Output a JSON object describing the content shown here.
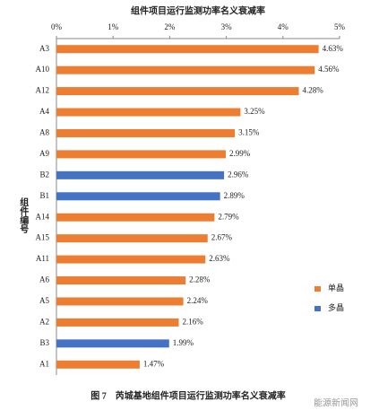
{
  "chart_data": {
    "type": "hbar",
    "title": "组件项目运行监测功率名义衰减率",
    "y_label": "组件编号",
    "caption": "图 7　芮城基地组件项目运行监测功率名义衰减率",
    "watermark": "能源新闻网",
    "categories": [
      "A3",
      "A10",
      "A12",
      "A4",
      "A8",
      "A9",
      "B2",
      "B1",
      "A14",
      "A15",
      "A11",
      "A6",
      "A5",
      "A2",
      "B3",
      "A1"
    ],
    "series": [
      {
        "name": "单晶",
        "color": "#ed7d31",
        "values": [
          4.63,
          4.56,
          4.28,
          3.25,
          3.15,
          2.99,
          null,
          null,
          2.79,
          2.67,
          2.63,
          2.28,
          2.24,
          2.16,
          null,
          1.47
        ],
        "value_labels": [
          "4.63%",
          "4.56%",
          "4.28%",
          "3.25%",
          "3.15%",
          "2.99%",
          null,
          null,
          "2.79%",
          "2.67%",
          "2.63%",
          "2.28%",
          "2.24%",
          "2.16%",
          null,
          "1.47%"
        ]
      },
      {
        "name": "多晶",
        "color": "#4472c4",
        "values": [
          null,
          null,
          null,
          null,
          null,
          null,
          2.96,
          2.89,
          null,
          null,
          null,
          null,
          null,
          null,
          1.99,
          null
        ],
        "value_labels": [
          null,
          null,
          null,
          null,
          null,
          null,
          "2.96%",
          "2.89%",
          null,
          null,
          null,
          null,
          null,
          null,
          "1.99%",
          null
        ]
      }
    ],
    "xlim": [
      0,
      5
    ],
    "xticks": [
      {
        "value": 0,
        "label": "0%"
      },
      {
        "value": 1,
        "label": "1%"
      },
      {
        "value": 2,
        "label": "2%"
      },
      {
        "value": 3,
        "label": "3%"
      },
      {
        "value": 4,
        "label": "4%"
      },
      {
        "value": 5,
        "label": "5%"
      }
    ],
    "legend": "right"
  }
}
